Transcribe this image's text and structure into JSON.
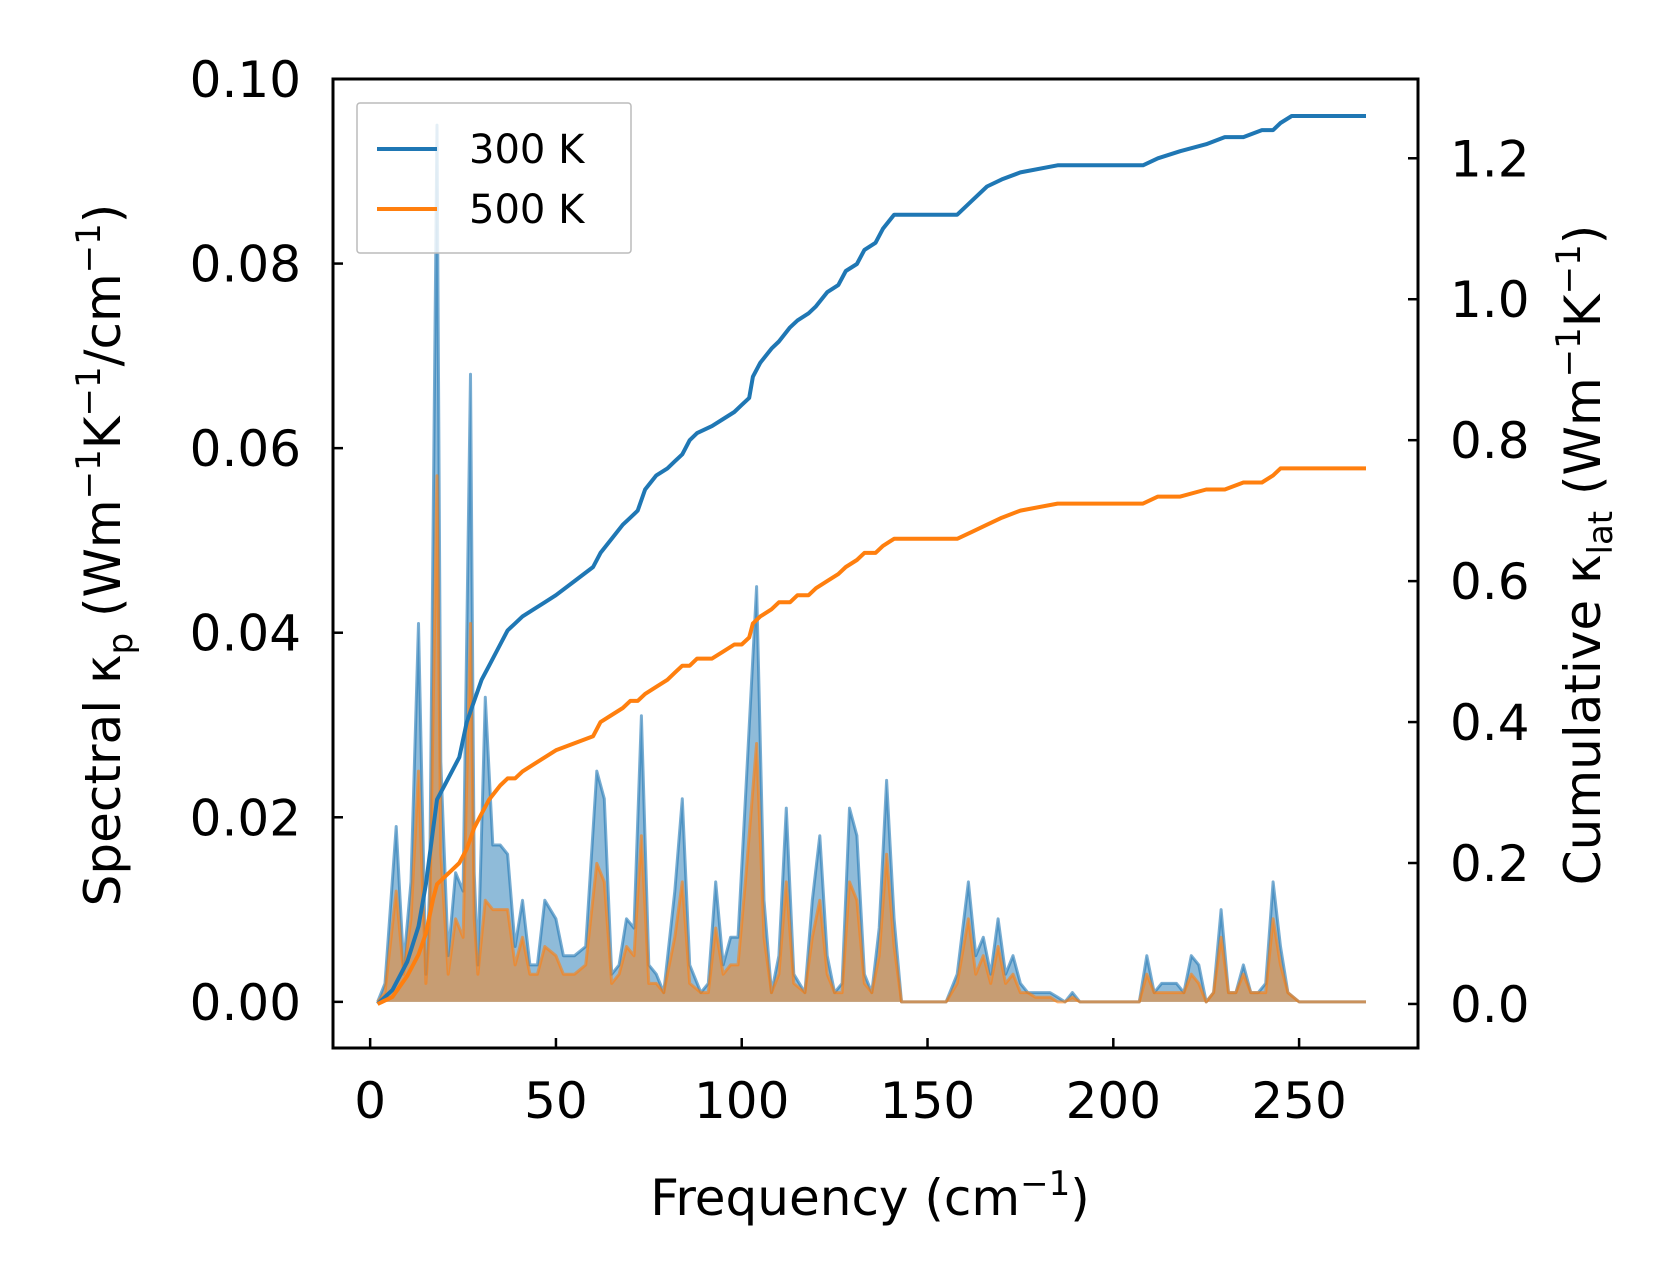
{
  "chart_data": {
    "type": "line",
    "xlabel": "Frequency (cm",
    "xlabel_sup": "−1",
    "xlabel_end": ")",
    "ylabel_left": {
      "pre": "Spectral κ",
      "sub": "p",
      "units_a": " (Wm",
      "sup1": "−1",
      "units_b": "K",
      "sup2": "−1",
      "units_c": "/cm",
      "sup3": "−1",
      "units_d": ")"
    },
    "ylabel_right": {
      "pre": "Cumulative κ",
      "sub": "lat",
      "units_a": " (Wm",
      "sup1": "−1",
      "units_b": "K",
      "sup2": "−1",
      "units_c": ")"
    },
    "xlim": [
      -10,
      282
    ],
    "ylim_left": [
      -0.005,
      0.1
    ],
    "ylim_right": [
      -0.0625,
      1.3125
    ],
    "x_ticks": [
      0,
      50,
      100,
      150,
      200,
      250
    ],
    "x_tick_labels": [
      "0",
      "50",
      "100",
      "150",
      "200",
      "250"
    ],
    "y_left_ticks": [
      0.0,
      0.02,
      0.04,
      0.06,
      0.08,
      0.1
    ],
    "y_left_tick_labels": [
      "0.00",
      "0.02",
      "0.04",
      "0.06",
      "0.08",
      "0.10"
    ],
    "y_right_ticks": [
      0.0,
      0.2,
      0.4,
      0.6,
      0.8,
      1.0,
      1.2
    ],
    "y_right_tick_labels": [
      "0.0",
      "0.2",
      "0.4",
      "0.6",
      "0.8",
      "1.0",
      "1.2"
    ],
    "legend": {
      "position": "top-left",
      "entries": [
        {
          "label": "300 K",
          "color": "#1f77b4"
        },
        {
          "label": "500 K",
          "color": "#ff7f0e"
        }
      ]
    },
    "series": [
      {
        "name": "300 K spectral",
        "axis": "left",
        "kind": "filled",
        "color": "#1f77b4",
        "x": [
          2,
          4,
          7,
          9,
          11,
          13,
          15,
          16,
          18,
          19,
          21,
          23,
          25,
          27,
          28,
          29,
          31,
          33,
          35,
          37,
          39,
          41,
          43,
          45,
          47,
          50,
          52,
          55,
          58,
          61,
          63,
          65,
          67,
          69,
          71,
          73,
          75,
          77,
          79,
          82,
          84,
          86,
          89,
          91,
          93,
          95,
          97,
          99,
          101,
          104,
          106,
          108,
          110,
          112,
          114,
          117,
          119,
          121,
          123,
          125,
          127,
          129,
          131,
          133,
          135,
          137,
          139,
          141,
          143,
          145,
          155,
          158,
          161,
          163,
          165,
          167,
          169,
          171,
          173,
          175,
          177,
          179,
          181,
          183,
          185,
          187,
          189,
          191,
          193,
          195,
          200,
          207,
          209,
          211,
          213,
          215,
          217,
          219,
          221,
          223,
          225,
          227,
          229,
          231,
          233,
          235,
          237,
          239,
          241,
          243,
          245,
          247,
          250,
          268
        ],
        "values": [
          0.0,
          0.002,
          0.019,
          0.004,
          0.013,
          0.041,
          0.003,
          0.012,
          0.095,
          0.026,
          0.005,
          0.014,
          0.012,
          0.068,
          0.014,
          0.004,
          0.033,
          0.017,
          0.017,
          0.016,
          0.006,
          0.011,
          0.004,
          0.004,
          0.011,
          0.009,
          0.005,
          0.005,
          0.006,
          0.025,
          0.022,
          0.003,
          0.004,
          0.009,
          0.008,
          0.031,
          0.004,
          0.003,
          0.001,
          0.012,
          0.022,
          0.004,
          0.001,
          0.002,
          0.013,
          0.004,
          0.007,
          0.007,
          0.022,
          0.045,
          0.011,
          0.001,
          0.005,
          0.021,
          0.003,
          0.001,
          0.011,
          0.018,
          0.005,
          0.001,
          0.002,
          0.021,
          0.018,
          0.003,
          0.001,
          0.008,
          0.024,
          0.009,
          0.0,
          0.0,
          0.0,
          0.003,
          0.013,
          0.005,
          0.007,
          0.003,
          0.009,
          0.003,
          0.005,
          0.002,
          0.001,
          0.001,
          0.001,
          0.001,
          0.0005,
          0.0,
          0.001,
          0.0,
          0.0,
          0.0,
          0.0,
          0.0,
          0.005,
          0.001,
          0.002,
          0.002,
          0.002,
          0.001,
          0.005,
          0.004,
          0.0,
          0.001,
          0.01,
          0.001,
          0.001,
          0.004,
          0.001,
          0.001,
          0.002,
          0.013,
          0.006,
          0.001,
          0.0,
          0.0
        ]
      },
      {
        "name": "500 K spectral",
        "axis": "left",
        "kind": "filled",
        "color": "#ff7f0e",
        "x": [
          2,
          4,
          7,
          9,
          11,
          13,
          15,
          16,
          18,
          19,
          21,
          23,
          25,
          27,
          28,
          29,
          31,
          33,
          35,
          37,
          39,
          41,
          43,
          45,
          47,
          50,
          52,
          55,
          58,
          61,
          63,
          65,
          67,
          69,
          71,
          73,
          75,
          77,
          79,
          82,
          84,
          86,
          89,
          91,
          93,
          95,
          97,
          99,
          101,
          104,
          106,
          108,
          110,
          112,
          114,
          117,
          119,
          121,
          123,
          125,
          127,
          129,
          131,
          133,
          135,
          137,
          139,
          141,
          143,
          145,
          155,
          158,
          161,
          163,
          165,
          167,
          169,
          171,
          173,
          175,
          177,
          179,
          181,
          183,
          185,
          187,
          189,
          191,
          193,
          195,
          200,
          207,
          209,
          211,
          213,
          215,
          217,
          219,
          221,
          223,
          225,
          227,
          229,
          231,
          233,
          235,
          237,
          239,
          241,
          243,
          245,
          247,
          250,
          268
        ],
        "values": [
          0.0,
          0.001,
          0.012,
          0.003,
          0.009,
          0.025,
          0.002,
          0.008,
          0.057,
          0.016,
          0.003,
          0.009,
          0.007,
          0.041,
          0.009,
          0.003,
          0.011,
          0.01,
          0.01,
          0.01,
          0.004,
          0.007,
          0.003,
          0.003,
          0.006,
          0.005,
          0.003,
          0.003,
          0.004,
          0.015,
          0.013,
          0.002,
          0.003,
          0.006,
          0.005,
          0.018,
          0.002,
          0.002,
          0.001,
          0.007,
          0.013,
          0.002,
          0.001,
          0.001,
          0.008,
          0.003,
          0.004,
          0.004,
          0.013,
          0.028,
          0.007,
          0.001,
          0.003,
          0.013,
          0.002,
          0.001,
          0.007,
          0.011,
          0.003,
          0.001,
          0.001,
          0.013,
          0.011,
          0.002,
          0.001,
          0.005,
          0.016,
          0.006,
          0.0,
          0.0,
          0.0,
          0.002,
          0.009,
          0.003,
          0.005,
          0.002,
          0.006,
          0.002,
          0.003,
          0.001,
          0.001,
          0.0005,
          0.0005,
          0.0005,
          0.0,
          0.0,
          0.0005,
          0.0,
          0.0,
          0.0,
          0.0,
          0.0,
          0.003,
          0.001,
          0.001,
          0.001,
          0.001,
          0.001,
          0.003,
          0.002,
          0.0,
          0.001,
          0.007,
          0.001,
          0.001,
          0.003,
          0.001,
          0.001,
          0.001,
          0.009,
          0.004,
          0.001,
          0.0,
          0.0
        ]
      },
      {
        "name": "300 K",
        "axis": "right",
        "kind": "line",
        "color": "#1f77b4",
        "x": [
          2,
          6,
          10,
          13,
          15,
          17,
          18,
          20,
          22,
          24,
          26,
          28,
          30,
          32,
          35,
          37,
          39,
          41,
          44,
          47,
          50,
          55,
          60,
          62,
          65,
          68,
          70,
          72,
          74,
          77,
          80,
          82,
          84,
          86,
          88,
          92,
          95,
          98,
          100,
          102,
          103,
          105,
          108,
          110,
          113,
          115,
          118,
          120,
          123,
          126,
          128,
          131,
          133,
          136,
          138,
          141,
          143,
          158,
          162,
          166,
          170,
          175,
          185,
          200,
          208,
          212,
          218,
          225,
          230,
          235,
          240,
          243,
          245,
          248,
          255,
          268
        ],
        "values": [
          0.0,
          0.02,
          0.06,
          0.11,
          0.17,
          0.25,
          0.29,
          0.31,
          0.33,
          0.35,
          0.4,
          0.43,
          0.46,
          0.48,
          0.51,
          0.53,
          0.54,
          0.55,
          0.56,
          0.57,
          0.58,
          0.6,
          0.62,
          0.64,
          0.66,
          0.68,
          0.69,
          0.7,
          0.73,
          0.75,
          0.76,
          0.77,
          0.78,
          0.8,
          0.81,
          0.82,
          0.83,
          0.84,
          0.85,
          0.86,
          0.89,
          0.91,
          0.93,
          0.94,
          0.96,
          0.97,
          0.98,
          0.99,
          1.01,
          1.02,
          1.04,
          1.05,
          1.07,
          1.08,
          1.1,
          1.12,
          1.12,
          1.12,
          1.14,
          1.16,
          1.17,
          1.18,
          1.19,
          1.19,
          1.19,
          1.2,
          1.21,
          1.22,
          1.23,
          1.23,
          1.24,
          1.24,
          1.25,
          1.26,
          1.26,
          1.26
        ]
      },
      {
        "name": "500 K",
        "axis": "right",
        "kind": "line",
        "color": "#ff7f0e",
        "x": [
          2,
          6,
          10,
          13,
          15,
          17,
          18,
          20,
          22,
          24,
          26,
          28,
          30,
          32,
          35,
          37,
          39,
          41,
          44,
          47,
          50,
          55,
          60,
          62,
          65,
          68,
          70,
          72,
          74,
          77,
          80,
          82,
          84,
          86,
          88,
          92,
          95,
          98,
          100,
          102,
          103,
          105,
          108,
          110,
          113,
          115,
          118,
          120,
          123,
          126,
          128,
          131,
          133,
          136,
          138,
          141,
          143,
          158,
          162,
          166,
          170,
          175,
          185,
          200,
          208,
          212,
          218,
          225,
          230,
          235,
          240,
          243,
          245,
          248,
          255,
          268
        ],
        "values": [
          0.0,
          0.01,
          0.04,
          0.07,
          0.1,
          0.15,
          0.17,
          0.18,
          0.19,
          0.2,
          0.22,
          0.25,
          0.27,
          0.29,
          0.31,
          0.32,
          0.32,
          0.33,
          0.34,
          0.35,
          0.36,
          0.37,
          0.38,
          0.4,
          0.41,
          0.42,
          0.43,
          0.43,
          0.44,
          0.45,
          0.46,
          0.47,
          0.48,
          0.48,
          0.49,
          0.49,
          0.5,
          0.51,
          0.51,
          0.52,
          0.54,
          0.55,
          0.56,
          0.57,
          0.57,
          0.58,
          0.58,
          0.59,
          0.6,
          0.61,
          0.62,
          0.63,
          0.64,
          0.64,
          0.65,
          0.66,
          0.66,
          0.66,
          0.67,
          0.68,
          0.69,
          0.7,
          0.71,
          0.71,
          0.71,
          0.72,
          0.72,
          0.73,
          0.73,
          0.74,
          0.74,
          0.75,
          0.76,
          0.76,
          0.76,
          0.76
        ]
      }
    ]
  }
}
